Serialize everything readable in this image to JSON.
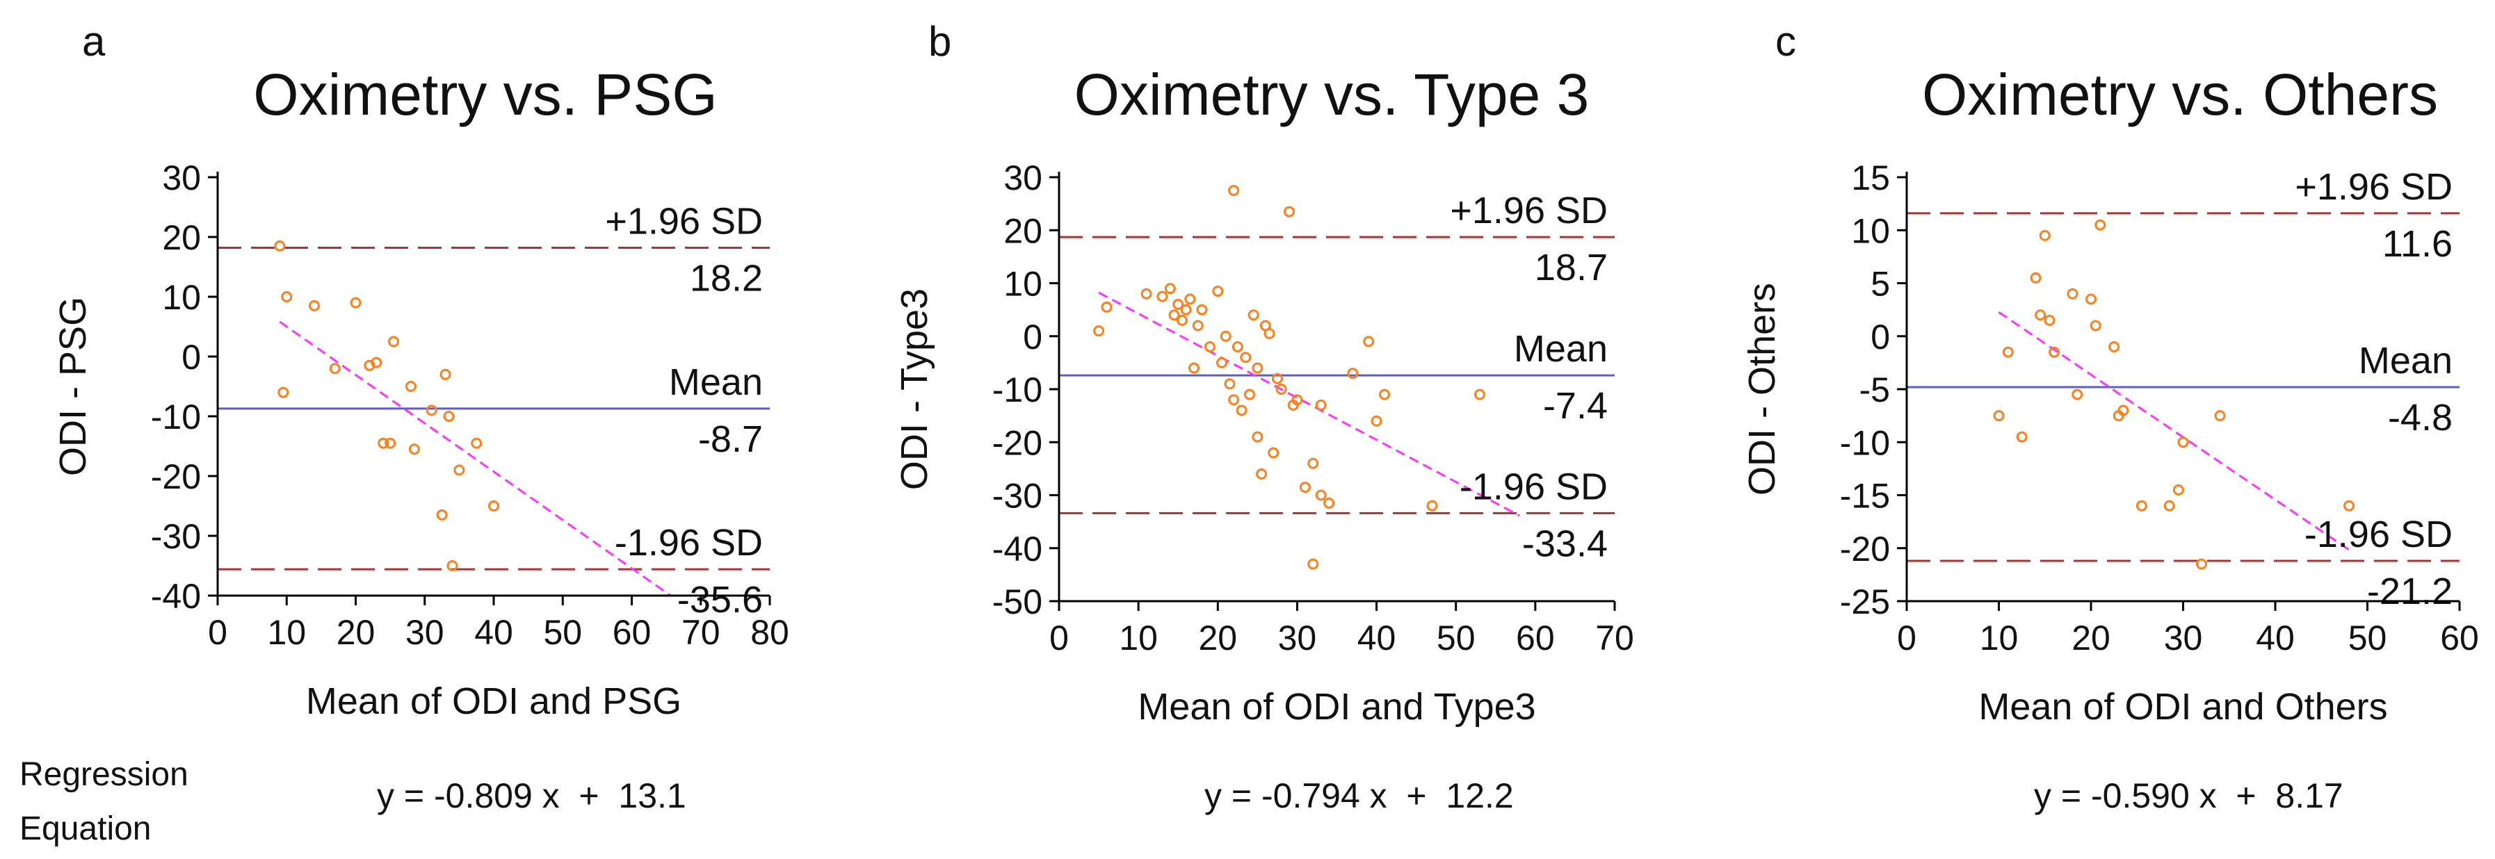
{
  "footer": {
    "regression_label_line1": "Regression",
    "regression_label_line2": "Equation"
  },
  "colors": {
    "axis": "#000000",
    "limits": "#b03030",
    "mean": "#5b5bd6",
    "regression": "#ff33ff",
    "points": "#ff7f1a"
  },
  "chart_data": [
    {
      "type": "scatter",
      "panel_letter": "a",
      "title": "Oximetry vs. PSG",
      "xlabel": "Mean of ODI and PSG",
      "ylabel": "ODI - PSG",
      "xlim": [
        0,
        80
      ],
      "ylim": [
        -40,
        30
      ],
      "xticks": [
        0,
        10,
        20,
        30,
        40,
        50,
        60,
        70,
        80
      ],
      "yticks": [
        -40,
        -30,
        -20,
        -10,
        0,
        10,
        20,
        30
      ],
      "upper_label": "+1.96 SD",
      "upper_value": 18.2,
      "upper_value_text": "18.2",
      "mean_label": "Mean",
      "mean_value": -8.7,
      "mean_value_text": "-8.7",
      "lower_label": "-1.96 SD",
      "lower_value": -35.6,
      "lower_value_text": "-35.6",
      "regression": {
        "slope": -0.809,
        "intercept": 13.1,
        "x_range": [
          9,
          66
        ]
      },
      "equation": "y = -0.809 x  +  13.1",
      "points": [
        [
          9,
          18.5
        ],
        [
          9.5,
          -6
        ],
        [
          10,
          10
        ],
        [
          14,
          8.5
        ],
        [
          17,
          -2
        ],
        [
          20,
          9
        ],
        [
          22,
          -1.5
        ],
        [
          23,
          -1
        ],
        [
          24,
          -14.5
        ],
        [
          25,
          -14.5
        ],
        [
          25.5,
          2.5
        ],
        [
          28,
          -5
        ],
        [
          28.5,
          -15.5
        ],
        [
          31,
          -9
        ],
        [
          32.5,
          -26.5
        ],
        [
          33,
          -3
        ],
        [
          33.5,
          -10
        ],
        [
          34,
          -35
        ],
        [
          35,
          -19
        ],
        [
          37.5,
          -14.5
        ],
        [
          40,
          -25
        ]
      ]
    },
    {
      "type": "scatter",
      "panel_letter": "b",
      "title": "Oximetry vs. Type 3",
      "xlabel": "Mean of ODI and Type3",
      "ylabel": "ODI - Type3",
      "xlim": [
        0,
        70
      ],
      "ylim": [
        -50,
        30
      ],
      "xticks": [
        0,
        10,
        20,
        30,
        40,
        50,
        60,
        70
      ],
      "yticks": [
        -50,
        -40,
        -30,
        -20,
        -10,
        0,
        10,
        20,
        30
      ],
      "upper_label": "+1.96 SD",
      "upper_value": 18.7,
      "upper_value_text": "18.7",
      "mean_label": "Mean",
      "mean_value": -7.4,
      "mean_value_text": "-7.4",
      "lower_label": "-1.96 SD",
      "lower_value": -33.4,
      "lower_value_text": "-33.4",
      "regression": {
        "slope": -0.794,
        "intercept": 12.2,
        "x_range": [
          5,
          58
        ]
      },
      "equation": "y = -0.794 x  +  12.2",
      "points": [
        [
          5,
          1
        ],
        [
          6,
          5.5
        ],
        [
          11,
          8
        ],
        [
          13,
          7.5
        ],
        [
          14,
          9
        ],
        [
          14.5,
          4
        ],
        [
          15,
          6
        ],
        [
          15.5,
          3
        ],
        [
          16,
          5
        ],
        [
          16.5,
          7
        ],
        [
          17,
          -6
        ],
        [
          17.5,
          2
        ],
        [
          18,
          5
        ],
        [
          19,
          -2
        ],
        [
          20,
          8.5
        ],
        [
          20.5,
          -5
        ],
        [
          21,
          0
        ],
        [
          21.5,
          -9
        ],
        [
          22,
          27.5
        ],
        [
          22,
          -12
        ],
        [
          22.5,
          -2
        ],
        [
          23,
          -14
        ],
        [
          23.5,
          -4
        ],
        [
          24,
          -11
        ],
        [
          24.5,
          4
        ],
        [
          25,
          -6
        ],
        [
          25,
          -19
        ],
        [
          25.5,
          -26
        ],
        [
          26,
          2
        ],
        [
          26.5,
          0.5
        ],
        [
          27,
          -22
        ],
        [
          27.5,
          -8
        ],
        [
          28,
          -10
        ],
        [
          29,
          23.5
        ],
        [
          29.5,
          -13
        ],
        [
          30,
          -12
        ],
        [
          31,
          -28.5
        ],
        [
          32,
          -24
        ],
        [
          32,
          -43
        ],
        [
          33,
          -30
        ],
        [
          33,
          -13
        ],
        [
          34,
          -31.5
        ],
        [
          37,
          -7
        ],
        [
          39,
          -1
        ],
        [
          40,
          -16
        ],
        [
          41,
          -11
        ],
        [
          47,
          -32
        ],
        [
          53,
          -11
        ]
      ]
    },
    {
      "type": "scatter",
      "panel_letter": "c",
      "title": "Oximetry vs. Others",
      "xlabel": "Mean of ODI and Others",
      "ylabel": "ODI - Others",
      "xlim": [
        0,
        60
      ],
      "ylim": [
        -25,
        15
      ],
      "xticks": [
        0,
        10,
        20,
        30,
        40,
        50,
        60
      ],
      "yticks": [
        -25,
        -20,
        -15,
        -10,
        -5,
        0,
        5,
        10,
        15
      ],
      "upper_label": "+1.96 SD",
      "upper_value": 11.6,
      "upper_value_text": "11.6",
      "mean_label": "Mean",
      "mean_value": -4.8,
      "mean_value_text": "-4.8",
      "lower_label": "-1.96 SD",
      "lower_value": -21.2,
      "lower_value_text": "-21.2",
      "regression": {
        "slope": -0.59,
        "intercept": 8.17,
        "x_range": [
          10,
          48
        ]
      },
      "equation": "y = -0.590 x  +  8.17",
      "points": [
        [
          10,
          -7.5
        ],
        [
          11,
          -1.5
        ],
        [
          12.5,
          -9.5
        ],
        [
          14,
          5.5
        ],
        [
          14.5,
          2
        ],
        [
          15,
          9.5
        ],
        [
          15.5,
          1.5
        ],
        [
          16,
          -1.5
        ],
        [
          18,
          4
        ],
        [
          18.5,
          -5.5
        ],
        [
          20,
          3.5
        ],
        [
          20.5,
          1
        ],
        [
          21,
          10.5
        ],
        [
          22.5,
          -1
        ],
        [
          23,
          -7.5
        ],
        [
          23.5,
          -7
        ],
        [
          25.5,
          -16
        ],
        [
          28.5,
          -16
        ],
        [
          29.5,
          -14.5
        ],
        [
          30,
          -10
        ],
        [
          32,
          -21.5
        ],
        [
          34,
          -7.5
        ],
        [
          48,
          -16
        ]
      ]
    }
  ]
}
